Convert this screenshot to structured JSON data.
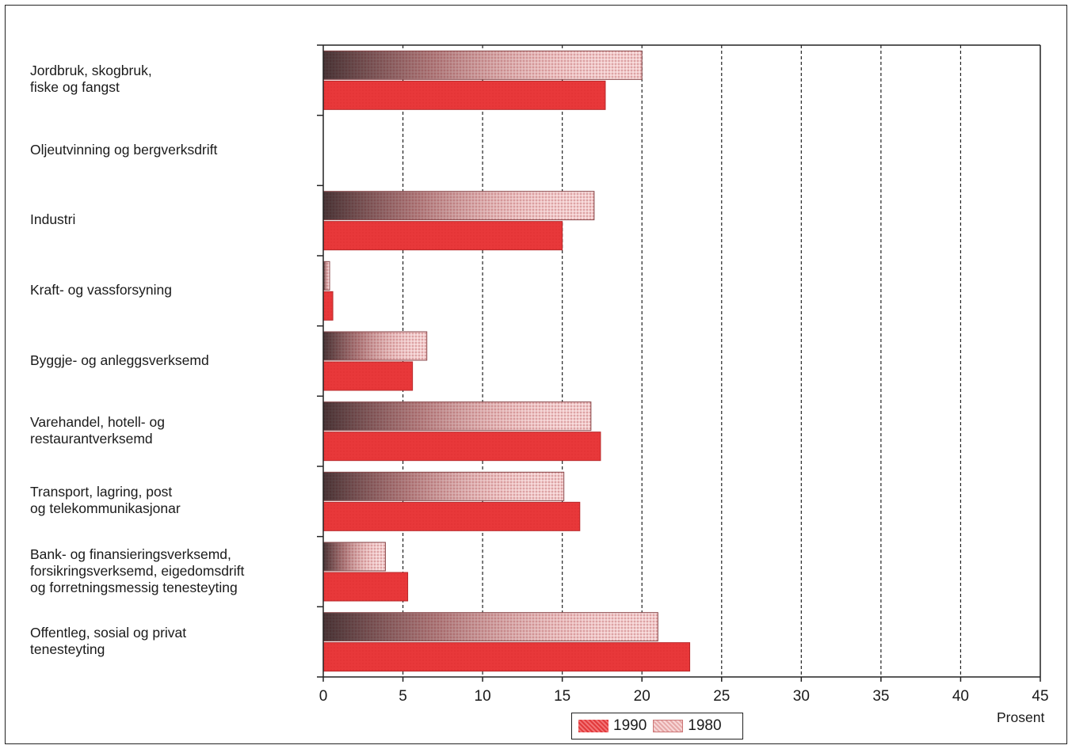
{
  "chart_data": {
    "type": "bar",
    "orientation": "horizontal",
    "categories": [
      "Jordbruk, skogbruk,\nfiske og fangst",
      "Oljeutvinning og bergverksdrift",
      "Industri",
      "Kraft- og vassforsyning",
      "Byggje- og anleggsverksemd",
      "Varehandel, hotell- og\nrestaurantverksemd",
      "Transport, lagring, post\nog telekommunikasjonar",
      "Bank- og finansieringsverksemd,\nforsikringsverksemd, eigedomsdrift\nog forretningsmessig tenesteyting",
      "Offentleg, sosial og privat\ntenesteyting"
    ],
    "series": [
      {
        "name": "1980",
        "values": [
          20,
          0,
          17,
          0.4,
          6.5,
          16.8,
          15.1,
          3.9,
          21
        ]
      },
      {
        "name": "1990",
        "values": [
          17.7,
          0,
          15,
          0.6,
          5.6,
          17.4,
          16.1,
          5.3,
          23
        ]
      }
    ],
    "xlabel": "Prosent",
    "xlim": [
      0,
      45
    ],
    "xticks": [
      0,
      5,
      10,
      15,
      20,
      25,
      30,
      35,
      40,
      45
    ],
    "grid": "vertical dashed",
    "legend_position": "bottom-center",
    "colors": {
      "1990": "#e8383a",
      "1980": "#e7a0a2",
      "dark_band": "#3a2a2a"
    }
  }
}
